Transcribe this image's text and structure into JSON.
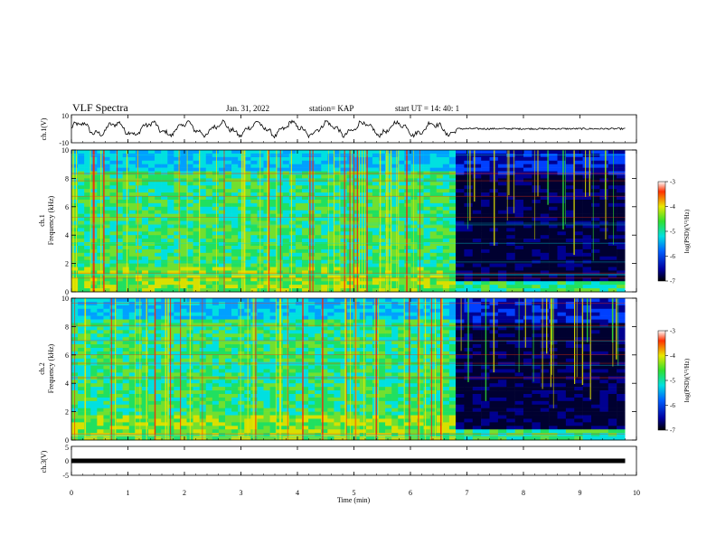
{
  "header": {
    "title": "VLF Spectra",
    "date": "Jan. 31, 2022",
    "station": "station= KAP",
    "start": "start  UT  =   14: 40: 1"
  },
  "chart_data": [
    {
      "type": "line",
      "panel": "ch1-waveform",
      "ylabel": "ch.1(V)",
      "ylim": [
        -10,
        10
      ],
      "yticks": [
        "10",
        "-10"
      ],
      "xlim": [
        0,
        10
      ],
      "description_points_min": [
        0,
        0.5,
        1,
        1.5,
        2,
        2.5,
        3,
        3.5,
        4,
        4.5,
        5,
        5.5,
        6,
        6.5,
        6.8,
        7,
        8,
        9,
        9.8
      ],
      "y": [
        -2,
        4,
        -3,
        5,
        -4,
        5,
        -3,
        5,
        -4,
        4,
        -2,
        5,
        -3,
        6,
        -9,
        0,
        0,
        0,
        0
      ]
    },
    {
      "type": "heatmap",
      "panel": "ch1-spectrogram",
      "ylabel": "ch.1\nFrequency (kHz)",
      "ylabel_top": "ch.1",
      "ylabel_bottom": "Frequency (kHz)",
      "ylim": [
        0,
        10
      ],
      "yticks": [
        "0",
        "2",
        "4",
        "6",
        "8",
        "10"
      ],
      "xlim": [
        0,
        10
      ],
      "transition_min": 6.8,
      "colorbar": {
        "label": "log(PSD)(V²/Hz)",
        "ticks": [
          "-3",
          "-4",
          "-5",
          "-6",
          "-7"
        ],
        "range": [
          -7,
          -3
        ]
      }
    },
    {
      "type": "heatmap",
      "panel": "ch2-spectrogram",
      "ylabel_top": "ch.2",
      "ylabel_bottom": "Frequency (kHz)",
      "ylim": [
        0,
        10
      ],
      "yticks": [
        "0",
        "2",
        "4",
        "6",
        "8",
        "10"
      ],
      "xlim": [
        0,
        10
      ],
      "transition_min": 6.8,
      "colorbar": {
        "label": "log(PSD)(V²/Hz)",
        "ticks": [
          "-3",
          "-4",
          "-5",
          "-6",
          "-7"
        ],
        "range": [
          -7,
          -3
        ]
      }
    },
    {
      "type": "line",
      "panel": "ch3-waveform",
      "ylabel": "ch.3(V)",
      "ylim": [
        -5,
        5
      ],
      "yticks": [
        "5",
        "0",
        "-5"
      ],
      "x": [
        0,
        9.8
      ],
      "y": [
        0,
        0
      ]
    }
  ],
  "xaxis": {
    "label": "Time  (min)",
    "ticks": [
      "0",
      "1",
      "2",
      "3",
      "4",
      "5",
      "6",
      "7",
      "8",
      "9",
      "10"
    ],
    "range": [
      0,
      10
    ]
  },
  "colors": {
    "low": "#000080",
    "mid_low": "#0050ff",
    "mid": "#00d0d0",
    "mid_high": "#30e030",
    "high_mid": "#e0e000",
    "high": "#ff0000",
    "quiet_bg": "#00001a"
  }
}
